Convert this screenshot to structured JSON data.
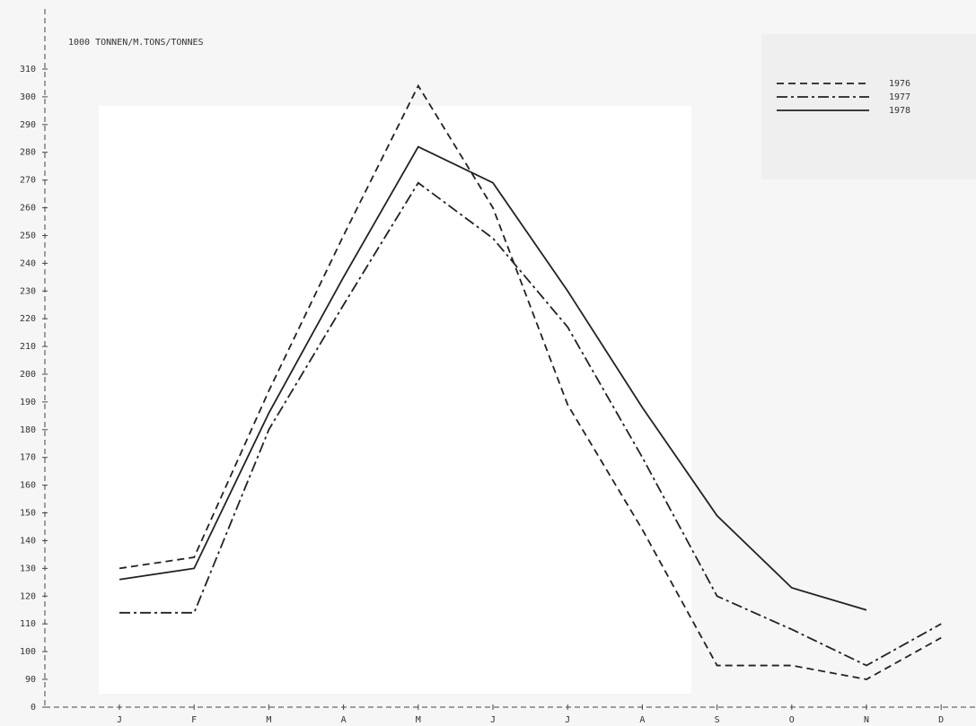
{
  "chart_data": {
    "type": "line",
    "title": "1000 TONNEN/M.TONS/TONNES",
    "categories": [
      "J",
      "F",
      "M",
      "A",
      "M",
      "J",
      "J",
      "A",
      "S",
      "O",
      "N",
      "D"
    ],
    "series": [
      {
        "name": "1976",
        "color": "#222222",
        "style": "dashed",
        "values": [
          130,
          134,
          194,
          250,
          304,
          260,
          189,
          144,
          95,
          95,
          90,
          105
        ]
      },
      {
        "name": "1977",
        "color": "#222222",
        "style": "dashdot",
        "values": [
          114,
          114,
          180,
          225,
          269,
          249,
          217,
          170,
          120,
          108,
          95,
          110
        ]
      },
      {
        "name": "1978",
        "color": "#222222",
        "style": "solid",
        "values": [
          126,
          130,
          186,
          235,
          282,
          269,
          230,
          188,
          149,
          123,
          115,
          null
        ]
      }
    ],
    "ylim": [
      0,
      315
    ],
    "yticks": [
      0,
      90,
      100,
      110,
      120,
      130,
      140,
      150,
      160,
      170,
      180,
      190,
      200,
      210,
      220,
      230,
      240,
      250,
      260,
      270,
      280,
      290,
      300,
      310
    ],
    "axis_break": true,
    "legend": "top-right"
  }
}
